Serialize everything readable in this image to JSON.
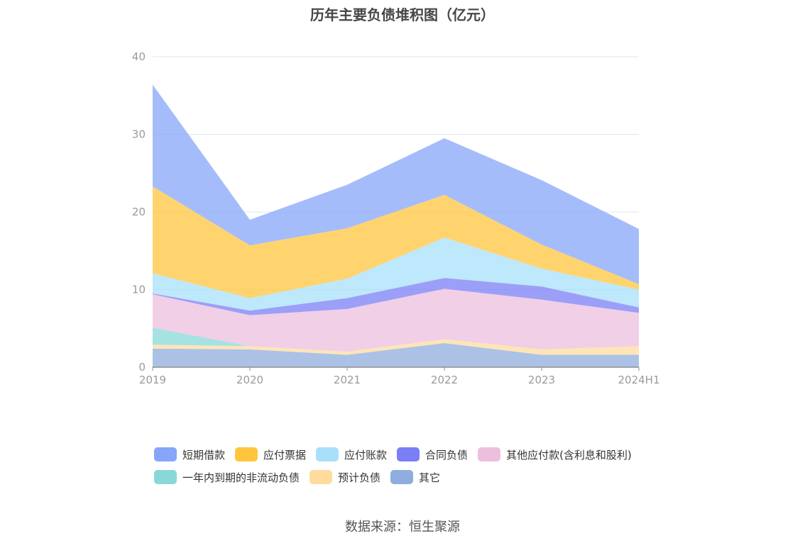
{
  "chart_data": {
    "type": "area",
    "stacked": true,
    "title": "历年主要负债堆积图（亿元）",
    "categories": [
      "2019",
      "2020",
      "2021",
      "2022",
      "2023",
      "2024H1"
    ],
    "ylim": [
      0,
      40
    ],
    "yticks": [
      0,
      10,
      20,
      30,
      40
    ],
    "grid": true,
    "legend_position": "bottom",
    "series": [
      {
        "name": "其它",
        "color": "#8fadde",
        "values": [
          2.4,
          2.3,
          1.6,
          3.1,
          1.6,
          1.6
        ]
      },
      {
        "name": "预计负债",
        "color": "#ffdc9e",
        "values": [
          0.5,
          0.4,
          0.4,
          0.5,
          0.7,
          1.1
        ]
      },
      {
        "name": "一年内到期的非流动负债",
        "color": "#88d8d8",
        "values": [
          2.2,
          0.0,
          0.0,
          0.0,
          0.0,
          0.0
        ]
      },
      {
        "name": "其他应付款(含利息和股利)",
        "color": "#ecbfdd",
        "values": [
          4.3,
          4.0,
          5.5,
          6.5,
          6.4,
          4.3
        ]
      },
      {
        "name": "合同负债",
        "color": "#7b7ff5",
        "values": [
          0.1,
          0.6,
          1.4,
          1.4,
          1.7,
          0.7
        ]
      },
      {
        "name": "应付账款",
        "color": "#a8e0fa",
        "values": [
          2.6,
          1.6,
          2.5,
          5.2,
          2.3,
          2.3
        ]
      },
      {
        "name": "应付票据",
        "color": "#ffc53d",
        "values": [
          11.2,
          6.8,
          6.5,
          5.5,
          3.1,
          0.7
        ]
      },
      {
        "name": "短期借款",
        "color": "#87a5fa",
        "values": [
          13.1,
          3.3,
          5.6,
          7.3,
          8.3,
          7.1
        ]
      }
    ],
    "legend_order": [
      "短期借款",
      "应付票据",
      "应付账款",
      "合同负债",
      "其他应付款(含利息和股利)",
      "一年内到期的非流动负债",
      "预计负债",
      "其它"
    ]
  },
  "source": "数据来源：恒生聚源"
}
